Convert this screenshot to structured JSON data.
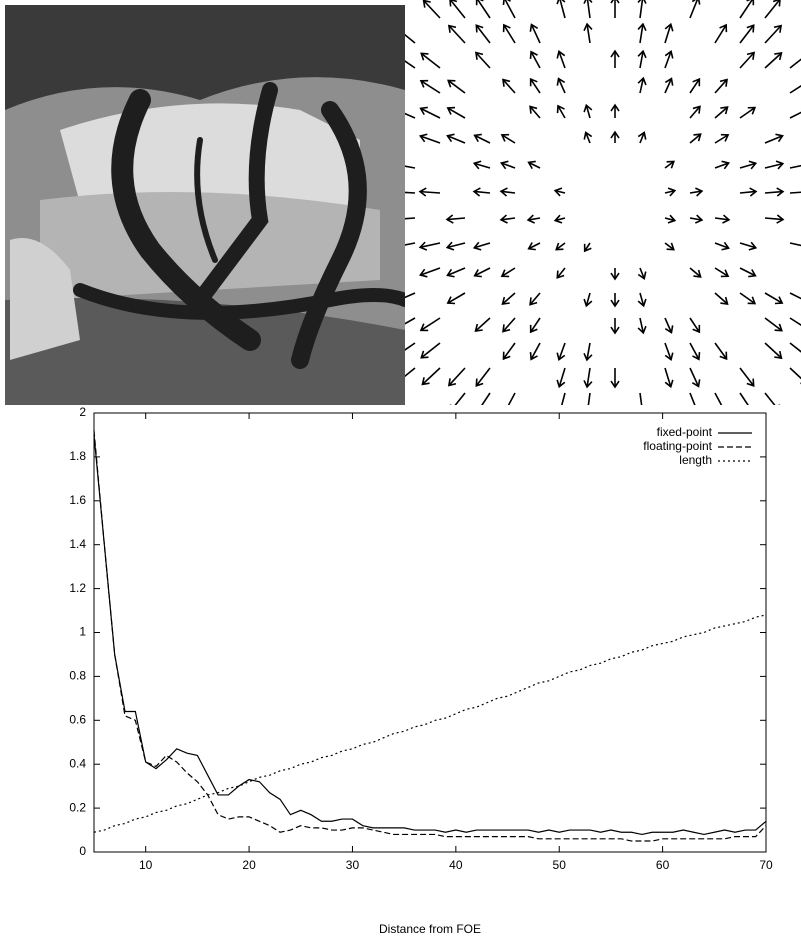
{
  "chart_data": {
    "type": "line",
    "xlabel": "Distance from FOE",
    "x": [
      5,
      6,
      7,
      8,
      9,
      10,
      11,
      12,
      13,
      14,
      15,
      16,
      17,
      18,
      19,
      20,
      21,
      22,
      23,
      24,
      25,
      26,
      27,
      28,
      29,
      30,
      31,
      32,
      33,
      34,
      35,
      36,
      37,
      38,
      39,
      40,
      41,
      42,
      43,
      44,
      45,
      46,
      47,
      48,
      49,
      50,
      51,
      52,
      53,
      54,
      55,
      56,
      57,
      58,
      59,
      60,
      61,
      62,
      63,
      64,
      65,
      66,
      67,
      68,
      69,
      70
    ],
    "series": [
      {
        "name": "fixed-point",
        "color": "#000000",
        "dash": "solid",
        "values": [
          1.9,
          1.4,
          0.9,
          0.64,
          0.64,
          0.41,
          0.38,
          0.42,
          0.47,
          0.45,
          0.44,
          0.35,
          0.26,
          0.26,
          0.3,
          0.33,
          0.32,
          0.27,
          0.24,
          0.17,
          0.19,
          0.17,
          0.14,
          0.14,
          0.15,
          0.15,
          0.12,
          0.11,
          0.11,
          0.11,
          0.11,
          0.1,
          0.1,
          0.1,
          0.09,
          0.1,
          0.09,
          0.1,
          0.1,
          0.1,
          0.1,
          0.1,
          0.1,
          0.09,
          0.1,
          0.09,
          0.1,
          0.1,
          0.1,
          0.09,
          0.1,
          0.09,
          0.09,
          0.08,
          0.09,
          0.09,
          0.09,
          0.1,
          0.09,
          0.08,
          0.09,
          0.1,
          0.09,
          0.1,
          0.1,
          0.14
        ]
      },
      {
        "name": "floating-point",
        "color": "#000000",
        "dash": "dashed",
        "values": [
          1.92,
          1.4,
          0.9,
          0.62,
          0.6,
          0.41,
          0.39,
          0.44,
          0.41,
          0.36,
          0.32,
          0.26,
          0.17,
          0.15,
          0.16,
          0.16,
          0.14,
          0.12,
          0.09,
          0.1,
          0.12,
          0.11,
          0.11,
          0.1,
          0.1,
          0.11,
          0.11,
          0.1,
          0.09,
          0.08,
          0.08,
          0.08,
          0.08,
          0.08,
          0.07,
          0.07,
          0.07,
          0.07,
          0.07,
          0.07,
          0.07,
          0.07,
          0.07,
          0.06,
          0.06,
          0.06,
          0.06,
          0.06,
          0.06,
          0.06,
          0.06,
          0.06,
          0.05,
          0.05,
          0.05,
          0.06,
          0.06,
          0.06,
          0.06,
          0.06,
          0.06,
          0.06,
          0.07,
          0.07,
          0.07,
          0.12
        ]
      },
      {
        "name": "length",
        "color": "#000000",
        "dash": "dotted",
        "values": [
          0.09,
          0.1,
          0.12,
          0.13,
          0.15,
          0.16,
          0.18,
          0.19,
          0.21,
          0.22,
          0.24,
          0.26,
          0.27,
          0.29,
          0.3,
          0.32,
          0.34,
          0.35,
          0.37,
          0.38,
          0.4,
          0.41,
          0.43,
          0.44,
          0.46,
          0.47,
          0.49,
          0.5,
          0.52,
          0.54,
          0.55,
          0.57,
          0.58,
          0.6,
          0.61,
          0.63,
          0.65,
          0.66,
          0.68,
          0.7,
          0.71,
          0.73,
          0.75,
          0.77,
          0.78,
          0.8,
          0.82,
          0.83,
          0.85,
          0.86,
          0.88,
          0.89,
          0.91,
          0.92,
          0.94,
          0.95,
          0.96,
          0.98,
          0.99,
          1.0,
          1.02,
          1.03,
          1.04,
          1.05,
          1.07,
          1.08
        ]
      }
    ],
    "xlim": [
      5,
      70
    ],
    "xticks": [
      10,
      20,
      30,
      40,
      50,
      60,
      70
    ],
    "ylim": [
      0,
      2
    ],
    "yticks": [
      0,
      0.2,
      0.4,
      0.6,
      0.8,
      1,
      1.2,
      1.4,
      1.6,
      1.8,
      2
    ],
    "legend": "top-right"
  }
}
